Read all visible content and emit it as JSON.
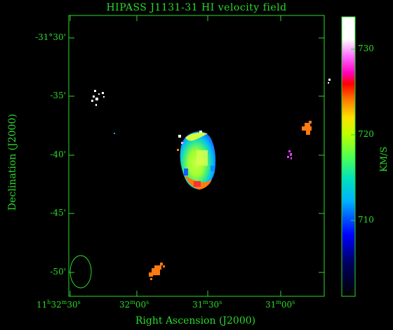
{
  "title": "HIPASS J1131-31   HI velocity field",
  "axes": {
    "xlabel": "Right Ascension (J2000)",
    "ylabel": "Declination (J2000)",
    "xticks": [
      {
        "h": "11",
        "m": "32",
        "s": "30",
        "label_main": "11h32m30s"
      },
      {
        "m": "32",
        "s": "00",
        "label_main": "32m00s"
      },
      {
        "m": "31",
        "s": "30",
        "label_main": "31m30s"
      },
      {
        "m": "31",
        "s": "00",
        "label_main": "31m00s"
      }
    ],
    "yticks": [
      "-31°30'",
      "-35'",
      "-40'",
      "-45'",
      "-50'"
    ]
  },
  "colorbar": {
    "unit": "KM/S",
    "ticks": [
      "730",
      "720",
      "710"
    ]
  },
  "colors": {
    "frame": "#2bd92b",
    "background": "#000000"
  }
}
